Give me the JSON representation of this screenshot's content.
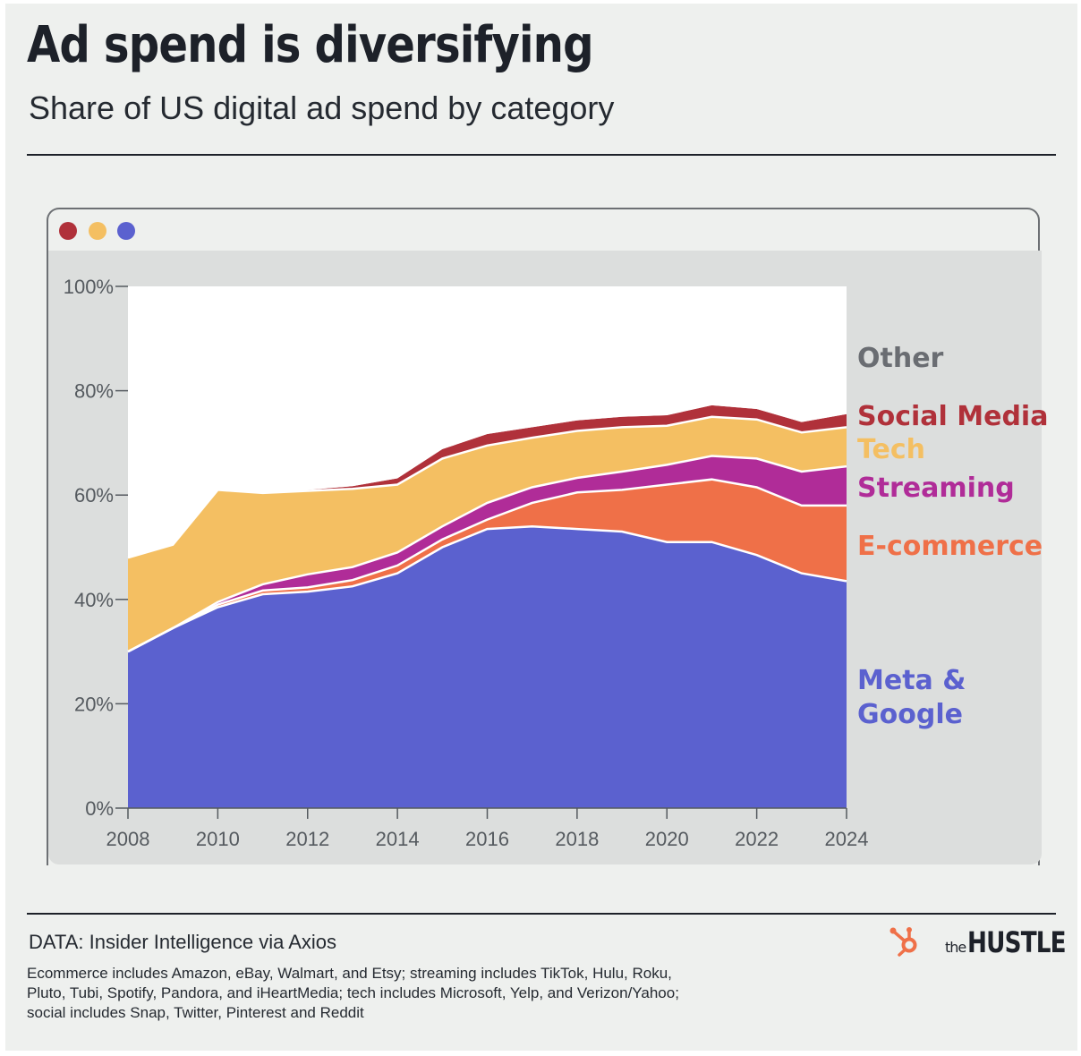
{
  "header": {
    "title": "Ad spend is diversifying",
    "subtitle": "Share of US digital ad spend by category"
  },
  "window_dots": [
    {
      "name": "red",
      "color": "#b0313a"
    },
    {
      "name": "yellow",
      "color": "#f4bf62"
    },
    {
      "name": "blue",
      "color": "#5b61cf"
    }
  ],
  "chart_data": {
    "type": "area",
    "stacked": true,
    "x": [
      2008,
      2009,
      2010,
      2011,
      2012,
      2013,
      2014,
      2015,
      2016,
      2017,
      2018,
      2019,
      2020,
      2021,
      2022,
      2023,
      2024
    ],
    "xticks": [
      "2008",
      "2010",
      "2012",
      "2014",
      "2016",
      "2018",
      "2020",
      "2022",
      "2024"
    ],
    "yticks": [
      "0%",
      "20%",
      "40%",
      "60%",
      "80%",
      "100%"
    ],
    "ylim": [
      0,
      100
    ],
    "series": [
      {
        "name": "Meta & Google",
        "label_lines": [
          "Meta &",
          "Google"
        ],
        "color": "#5b61cf",
        "values": [
          30,
          34.5,
          38.5,
          41,
          41.5,
          42.5,
          45,
          50,
          53.5,
          54,
          53.5,
          53,
          51,
          51,
          48.5,
          45,
          43.5
        ]
      },
      {
        "name": "E-commerce",
        "label_lines": [
          "E-commerce"
        ],
        "color": "#ef7048",
        "values": [
          0,
          0,
          0.5,
          0.7,
          0.8,
          1.2,
          1.5,
          1.5,
          1.8,
          4.5,
          7,
          8,
          11,
          12,
          13,
          13,
          14.5
        ]
      },
      {
        "name": "Streaming",
        "label_lines": [
          "Streaming"
        ],
        "color": "#b02c98",
        "values": [
          0,
          0,
          0.5,
          1.2,
          2.5,
          2.5,
          2.5,
          2.5,
          3.2,
          3,
          2.8,
          3.5,
          3.8,
          4.5,
          5.5,
          6.5,
          7.5
        ]
      },
      {
        "name": "Tech",
        "label_lines": [
          "Tech"
        ],
        "color": "#f4bf62",
        "values": [
          18,
          16,
          21.5,
          17.5,
          16,
          15,
          13,
          13,
          11,
          9.5,
          9,
          8.5,
          7.5,
          7.5,
          7.5,
          7.5,
          7.5
        ]
      },
      {
        "name": "Social Media",
        "label_lines": [
          "Social Media"
        ],
        "color": "#b0313a",
        "values": [
          0,
          0,
          0,
          0,
          0.2,
          0.5,
          1.2,
          1.8,
          2.2,
          2,
          2,
          2,
          2,
          2.2,
          2,
          2,
          2.5
        ]
      },
      {
        "name": "Other",
        "label_lines": [
          "Other"
        ],
        "color": "#ffffff",
        "label_color": "#6a6d72",
        "values": [
          52,
          49.5,
          39,
          39.6,
          39,
          38.3,
          36.8,
          31.2,
          28.3,
          27,
          25.7,
          25,
          24.7,
          22.8,
          23.5,
          26,
          24.5
        ]
      }
    ]
  },
  "footer": {
    "source": "DATA: Insider Intelligence via Axios",
    "note": "Ecommerce includes Amazon, eBay, Walmart, and Etsy; streaming includes TikTok, Hulu, Roku, Pluto, Tubi, Spotify, Pandora, and iHeartMedia; tech includes Microsoft, Yelp, and Verizon/Yahoo; social includes Snap, Twitter, Pinterest and Reddit",
    "brand_small": "the",
    "brand_main": "HUSTLE",
    "hub_color": "#ef7048"
  }
}
